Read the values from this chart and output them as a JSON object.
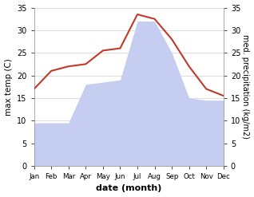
{
  "months": [
    "Jan",
    "Feb",
    "Mar",
    "Apr",
    "May",
    "Jun",
    "Jul",
    "Aug",
    "Sep",
    "Oct",
    "Nov",
    "Dec"
  ],
  "max_temp": [
    17,
    21,
    22,
    22.5,
    25.5,
    26,
    33.5,
    32.5,
    28,
    22,
    17,
    15.5
  ],
  "precipitation": [
    9.5,
    9.5,
    9.5,
    18,
    18.5,
    19,
    32,
    32,
    25,
    15,
    14.5,
    14.5
  ],
  "temp_color": "#c0392b",
  "precip_fill_color": "#c5cdf0",
  "ylim": [
    0,
    35
  ],
  "xlabel": "date (month)",
  "ylabel_left": "max temp (C)",
  "ylabel_right": "med. precipitation (kg/m2)",
  "bg_color": "#ffffff",
  "grid_color": "#d0d0d0"
}
